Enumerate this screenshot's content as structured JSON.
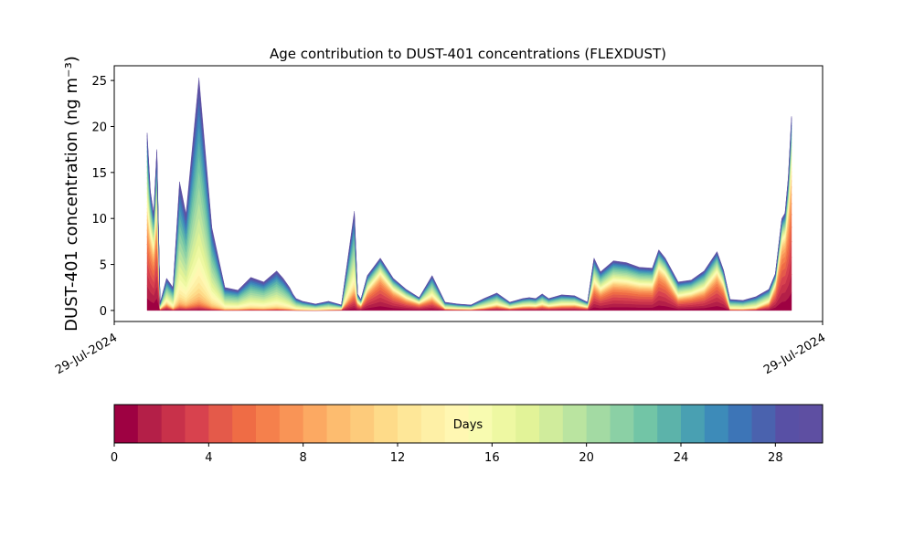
{
  "chart_data": {
    "type": "area",
    "title": "Age contribution to DUST-401 concentrations (FLEXDUST)",
    "ylabel": "DUST-401 concentration (ng m⁻³)",
    "xlabel": "",
    "x_tick_labels": [
      "29-Jul-2024",
      "29-Jul-2024"
    ],
    "y_ticks": [
      0,
      5,
      10,
      15,
      20,
      25
    ],
    "ylim": [
      -1.2,
      26.6
    ],
    "stacking": "layers ordered by particle age, 0 to 30 days",
    "sample_index": [
      0,
      0.25,
      0.5,
      0.75,
      1.0,
      1.5,
      2,
      2.5,
      3,
      4,
      5,
      6,
      7,
      8,
      9,
      10,
      10.5,
      11,
      11.25,
      11.5,
      12,
      13,
      14,
      15,
      16,
      16.25,
      16.5,
      17,
      18,
      19,
      20,
      21,
      22,
      23,
      24,
      25,
      26,
      27,
      27.5,
      28,
      29,
      29.5,
      30,
      30.5,
      31,
      32,
      33,
      34,
      34.5,
      35,
      36,
      37,
      38,
      39,
      39.5,
      40,
      41,
      42,
      43,
      44,
      44.5,
      45,
      46,
      47,
      48,
      48.5,
      49,
      49.25,
      49.5,
      49.75
    ],
    "total_concentration": [
      19.3,
      13,
      10.5,
      17.5,
      0.8,
      3.5,
      2.5,
      14,
      10.5,
      25.3,
      9,
      2.5,
      2.2,
      3.6,
      3.1,
      4.3,
      3.5,
      2.5,
      1.8,
      1.3,
      1.0,
      0.7,
      1.0,
      0.6,
      10.8,
      1.8,
      1.2,
      3.8,
      5.7,
      3.5,
      2.3,
      1.4,
      3.8,
      0.9,
      0.7,
      0.6,
      1.3,
      1.9,
      1.4,
      0.9,
      1.3,
      1.4,
      1.3,
      1.8,
      1.3,
      1.7,
      1.6,
      0.9,
      5.7,
      4.2,
      5.4,
      5.2,
      4.7,
      4.6,
      6.6,
      5.7,
      3.1,
      3.3,
      4.3,
      6.4,
      4.4,
      1.2,
      1.1,
      1.5,
      2.3,
      4.0,
      10.0,
      10.6,
      14.5,
      21.1
    ],
    "young_fraction": [
      0.7,
      0.75,
      0.75,
      0.75,
      0.3,
      0.3,
      0.1,
      0.05,
      0.05,
      0.03,
      0.03,
      0.03,
      0.05,
      0.05,
      0.05,
      0.05,
      0.05,
      0.05,
      0.05,
      0.05,
      0.05,
      0.05,
      0.1,
      0.3,
      0.3,
      0.6,
      0.6,
      0.7,
      0.8,
      0.75,
      0.7,
      0.7,
      0.5,
      0.3,
      0.3,
      0.3,
      0.3,
      0.4,
      0.4,
      0.4,
      0.45,
      0.45,
      0.45,
      0.45,
      0.45,
      0.45,
      0.5,
      0.5,
      0.65,
      0.65,
      0.7,
      0.7,
      0.7,
      0.7,
      0.8,
      0.8,
      0.6,
      0.65,
      0.65,
      0.75,
      0.75,
      0.15,
      0.15,
      0.2,
      0.5,
      0.8,
      0.85,
      0.85,
      0.85,
      0.85
    ],
    "colorbar": {
      "label": "Days",
      "tick_values": [
        0,
        4,
        8,
        12,
        16,
        20,
        24,
        28
      ],
      "range": [
        0,
        30
      ],
      "colors": [
        "#9e0142",
        "#b41f48",
        "#c8314a",
        "#d8424e",
        "#e45a4a",
        "#ef6c45",
        "#f5804c",
        "#f99456",
        "#fca962",
        "#fdbc6f",
        "#fdcb7b",
        "#fedb89",
        "#fee798",
        "#fef0a6",
        "#fff7b2",
        "#f8fbb0",
        "#eef8a2",
        "#e2f398",
        "#d0ec9c",
        "#bae4a0",
        "#a3daa3",
        "#8bd0a5",
        "#72c5a6",
        "#5cb3aa",
        "#49a0b2",
        "#3d8bb9",
        "#3d75b7",
        "#4a62ae",
        "#5850a5",
        "#5e4fa2"
      ]
    }
  }
}
